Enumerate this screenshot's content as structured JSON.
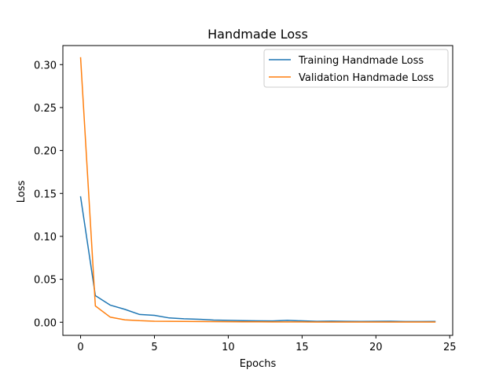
{
  "chart_data": {
    "type": "line",
    "title": "Handmade Loss",
    "xlabel": "Epochs",
    "ylabel": "Loss",
    "xlim": [
      -1.2,
      25.2
    ],
    "ylim": [
      -0.0153,
      0.3222
    ],
    "xticks": [
      0,
      5,
      10,
      15,
      20,
      25
    ],
    "yticks": [
      0.0,
      0.05,
      0.1,
      0.15,
      0.2,
      0.25,
      0.3
    ],
    "ytick_labels": [
      "0.00",
      "0.05",
      "0.10",
      "0.15",
      "0.20",
      "0.25",
      "0.30"
    ],
    "grid": false,
    "legend_position": "top-right",
    "x": [
      0,
      1,
      2,
      3,
      4,
      5,
      6,
      7,
      8,
      9,
      10,
      11,
      12,
      13,
      14,
      15,
      16,
      17,
      18,
      19,
      20,
      21,
      22,
      23,
      24
    ],
    "series": [
      {
        "name": "Training Handmade Loss",
        "color": "#1f77b4",
        "values": [
          0.146,
          0.031,
          0.02,
          0.015,
          0.009,
          0.008,
          0.005,
          0.004,
          0.0035,
          0.0025,
          0.0022,
          0.0018,
          0.0016,
          0.0015,
          0.0022,
          0.0016,
          0.001,
          0.0013,
          0.0011,
          0.0009,
          0.001,
          0.0012,
          0.0008,
          0.0008,
          0.0009
        ]
      },
      {
        "name": "Validation Handmade Loss",
        "color": "#ff7f0e",
        "values": [
          0.308,
          0.019,
          0.006,
          0.0028,
          0.0018,
          0.0012,
          0.0011,
          0.0009,
          0.0008,
          0.0007,
          0.0006,
          0.0005,
          0.0005,
          0.0004,
          0.0004,
          0.0004,
          0.0003,
          0.0003,
          0.0003,
          0.0003,
          0.0003,
          0.0003,
          0.0002,
          0.0002,
          0.0002
        ]
      }
    ]
  }
}
